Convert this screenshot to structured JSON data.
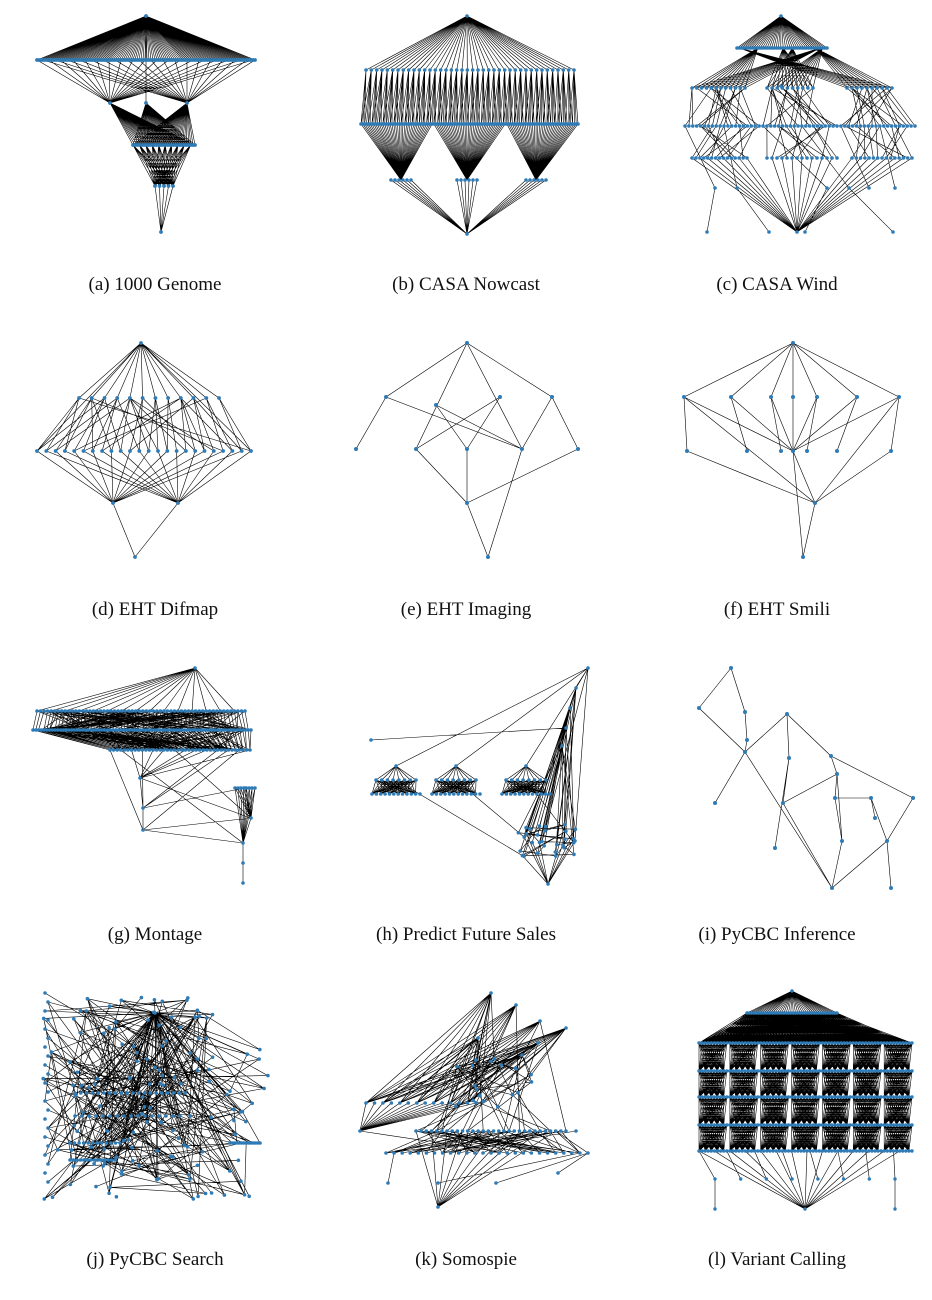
{
  "colors": {
    "node": "#2f7bb6",
    "edge": "#000000"
  },
  "panels": [
    {
      "id": "1000-genome",
      "caption": "(a) 1000 Genome"
    },
    {
      "id": "casa-nowcast",
      "caption": "(b) CASA Nowcast"
    },
    {
      "id": "casa-wind",
      "caption": "(c) CASA Wind"
    },
    {
      "id": "eht-difmap",
      "caption": "(d) EHT Difmap"
    },
    {
      "id": "eht-imaging",
      "caption": "(e) EHT Imaging"
    },
    {
      "id": "eht-smili",
      "caption": "(f) EHT Smili"
    },
    {
      "id": "montage",
      "caption": "(g) Montage"
    },
    {
      "id": "predict-future-sales",
      "caption": "(h) Predict Future Sales"
    },
    {
      "id": "pycbc-inference",
      "caption": "(i) PyCBC Inference"
    },
    {
      "id": "pycbc-search",
      "caption": "(j) PyCBC Search"
    },
    {
      "id": "somospie",
      "caption": "(k) Somospie"
    },
    {
      "id": "variant-calling",
      "caption": "(l) Variant Calling"
    }
  ]
}
